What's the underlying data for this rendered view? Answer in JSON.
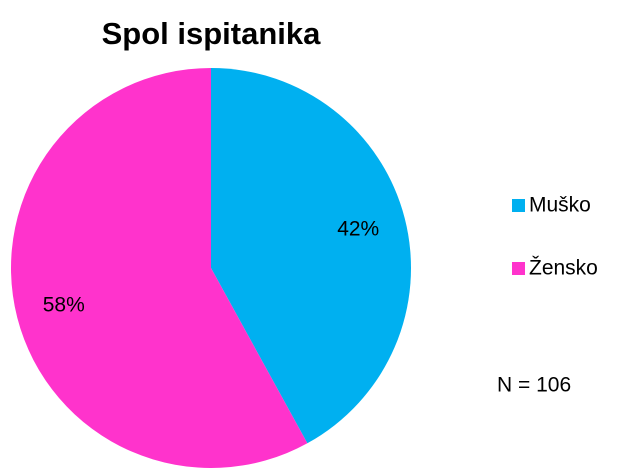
{
  "chart_data": {
    "type": "pie",
    "title": "Spol ispitanika",
    "categories": [
      "Muško",
      "Žensko"
    ],
    "values": [
      42,
      58
    ],
    "value_labels": [
      "42%",
      "58%"
    ],
    "colors": [
      "#00b0f0",
      "#ff33cc"
    ],
    "legend": "right",
    "annotation": "N = 106"
  }
}
